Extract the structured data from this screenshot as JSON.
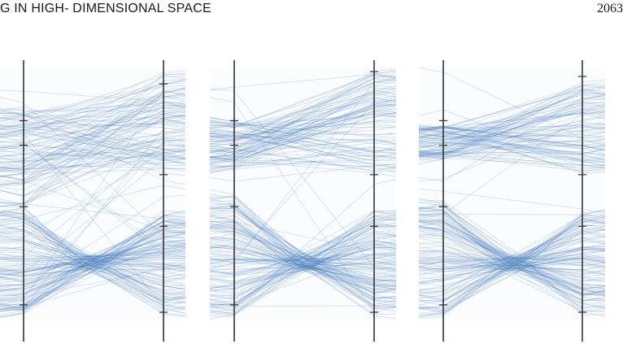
{
  "running_head": {
    "title": "G IN HIGH- DIMENSIONAL SPACE",
    "page_number": "2063"
  },
  "colors": {
    "line": "#4a80c0",
    "axis": "#333333",
    "panel_bg": "#fbfcfe"
  },
  "figure": {
    "type": "parallel-coordinates",
    "panels": [
      {
        "name": "panel-1",
        "axes": [
          {
            "name": "left-axis",
            "tick_values": [
              0.2,
              0.3,
              0.55,
              0.95
            ]
          },
          {
            "name": "right-axis",
            "tick_values": [
              0.05,
              0.42,
              0.63,
              0.98
            ]
          }
        ],
        "upper_cluster": {
          "count": 90,
          "left_range": [
            0.15,
            0.55
          ],
          "right_range": [
            0.0,
            0.4
          ]
        },
        "lower_cluster": {
          "count": 120,
          "left_range": [
            0.55,
            1.0
          ],
          "right_range": [
            0.55,
            1.0
          ],
          "crossing": 0.78
        },
        "noise_lines": 25
      },
      {
        "name": "panel-2",
        "axes": [
          {
            "name": "left-axis",
            "tick_values": [
              0.2,
              0.3,
              0.55,
              0.95
            ]
          },
          {
            "name": "right-axis",
            "tick_values": [
              0.0,
              0.42,
              0.63,
              0.98
            ]
          }
        ],
        "upper_cluster": {
          "count": 90,
          "left_range": [
            0.2,
            0.4
          ],
          "right_range": [
            0.0,
            0.42
          ]
        },
        "lower_cluster": {
          "count": 120,
          "left_range": [
            0.5,
            1.0
          ],
          "right_range": [
            0.55,
            1.0
          ],
          "crossing": 0.78
        },
        "noise_lines": 15
      },
      {
        "name": "panel-3",
        "axes": [
          {
            "name": "left-axis",
            "tick_values": [
              0.2,
              0.3,
              0.55,
              0.95
            ]
          },
          {
            "name": "right-axis",
            "tick_values": [
              0.02,
              0.42,
              0.63,
              0.98
            ]
          }
        ],
        "upper_cluster": {
          "count": 90,
          "left_range": [
            0.22,
            0.36
          ],
          "right_range": [
            0.02,
            0.42
          ]
        },
        "lower_cluster": {
          "count": 120,
          "left_range": [
            0.52,
            1.0
          ],
          "right_range": [
            0.55,
            1.0
          ],
          "crossing": 0.78
        },
        "noise_lines": 10
      }
    ]
  }
}
